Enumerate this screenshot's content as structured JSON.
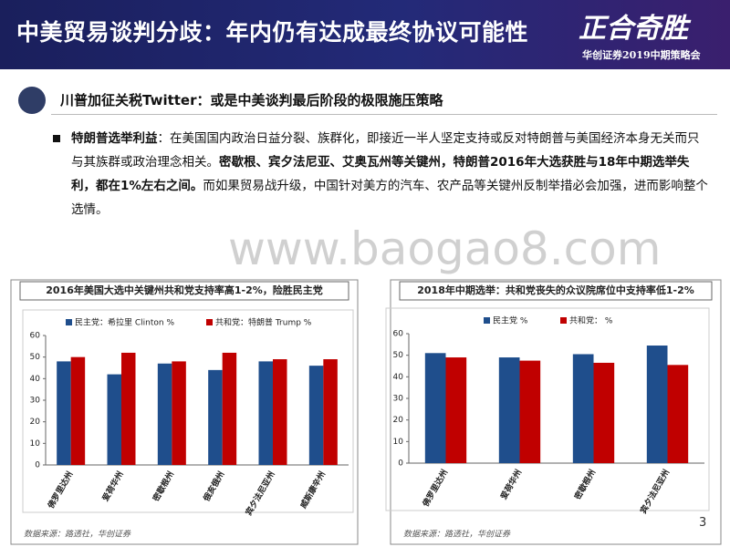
{
  "header": {
    "title": "中美贸易谈判分歧：年内仍有达成最终协议可能性",
    "logo": "正合奇胜",
    "subtitle": "华创证券2019中期策略会"
  },
  "section": {
    "heading": "川普加征关税Twitter：或是中美谈判最后阶段的极限施压策略"
  },
  "bullet": {
    "segments": [
      {
        "text": "特朗普选举利益",
        "bold": true
      },
      {
        "text": "：在美国国内政治日益分裂、族群化，即接近一半人坚定支持或反对特朗普与美国经济本身无关而只与其族群或政治理念相关。",
        "bold": false
      },
      {
        "text": "密歇根、宾夕法尼亚、艾奥瓦州等关键州，特朗普2016年大选获胜与18年中期选举失利，都在1%左右之间。",
        "bold": true
      },
      {
        "text": "而如果贸易战升级，中国针对美方的汽车、农产品等关键州反制举措必会加强，进而影响整个选情。",
        "bold": false
      }
    ]
  },
  "watermark": "www.baogao8.com",
  "page_number": "3",
  "chart_data": [
    {
      "type": "bar",
      "title": "2016年美国大选中关键州共和党支持率高1-2%，险胜民主党",
      "categories": [
        "佛罗里达州",
        "爱荷华州",
        "密歇根州",
        "俄亥俄州",
        "宾夕法尼亚州",
        "威斯康辛州"
      ],
      "series": [
        {
          "name": "民主党：希拉里 Clinton %",
          "color": "#1f4e8c",
          "values": [
            48,
            42,
            47,
            44,
            48,
            46
          ]
        },
        {
          "name": "共和党：特朗普 Trump %",
          "color": "#c00000",
          "values": [
            50,
            52,
            48,
            52,
            49,
            49
          ]
        }
      ],
      "ylim": [
        0,
        60
      ],
      "yticks": [
        0,
        10,
        20,
        30,
        40,
        50,
        60
      ],
      "grid": false,
      "source": "数据来源：路透社，华创证券"
    },
    {
      "type": "bar",
      "title": "2018年中期选举：共和党丧失的众议院席位中支持率低1-2%",
      "categories": [
        "佛罗里达州",
        "爱荷华州",
        "密歇根州",
        "宾夕法尼亚州"
      ],
      "series": [
        {
          "name": "民主党 %",
          "color": "#1f4e8c",
          "values": [
            51,
            49,
            50.5,
            54.5
          ]
        },
        {
          "name": "共和党： %",
          "color": "#c00000",
          "values": [
            49,
            47.5,
            46.5,
            45.5
          ]
        }
      ],
      "ylim": [
        0,
        60
      ],
      "yticks": [
        0,
        10,
        20,
        30,
        40,
        50,
        60
      ],
      "grid": false,
      "source": "数据来源：路透社，华创证券"
    }
  ]
}
